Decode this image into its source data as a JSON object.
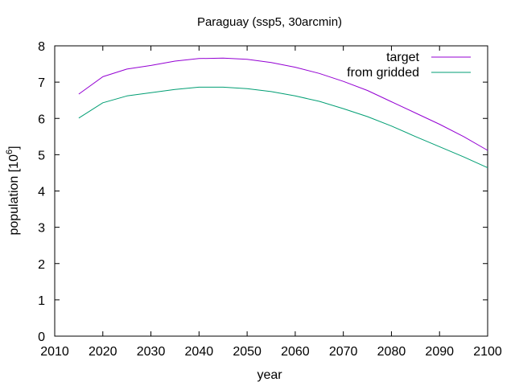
{
  "chart_data": {
    "type": "line",
    "title": "Paraguay (ssp5, 30arcmin)",
    "xlabel": "year",
    "ylabel_prefix": "population [10",
    "ylabel_exp": "6",
    "ylabel_suffix": "]",
    "xlim": [
      2010,
      2100
    ],
    "ylim": [
      0,
      8
    ],
    "xticks": [
      2010,
      2020,
      2030,
      2040,
      2050,
      2060,
      2070,
      2080,
      2090,
      2100
    ],
    "yticks": [
      0,
      1,
      2,
      3,
      4,
      5,
      6,
      7,
      8
    ],
    "grid": false,
    "legend_position": "top-right",
    "series": [
      {
        "name": "target",
        "color": "#9400d3",
        "x": [
          2015,
          2020,
          2025,
          2030,
          2035,
          2040,
          2045,
          2050,
          2055,
          2060,
          2065,
          2070,
          2075,
          2080,
          2085,
          2090,
          2095,
          2100
        ],
        "y": [
          6.67,
          7.15,
          7.36,
          7.46,
          7.58,
          7.65,
          7.66,
          7.63,
          7.54,
          7.41,
          7.24,
          7.02,
          6.77,
          6.46,
          6.15,
          5.84,
          5.5,
          5.12
        ]
      },
      {
        "name": "from gridded",
        "color": "#009e73",
        "x": [
          2015,
          2020,
          2025,
          2030,
          2035,
          2040,
          2045,
          2050,
          2055,
          2060,
          2065,
          2070,
          2075,
          2080,
          2085,
          2090,
          2095,
          2100
        ],
        "y": [
          6.01,
          6.43,
          6.62,
          6.71,
          6.8,
          6.86,
          6.86,
          6.82,
          6.74,
          6.62,
          6.47,
          6.27,
          6.05,
          5.79,
          5.5,
          5.22,
          4.94,
          4.64
        ]
      }
    ]
  }
}
